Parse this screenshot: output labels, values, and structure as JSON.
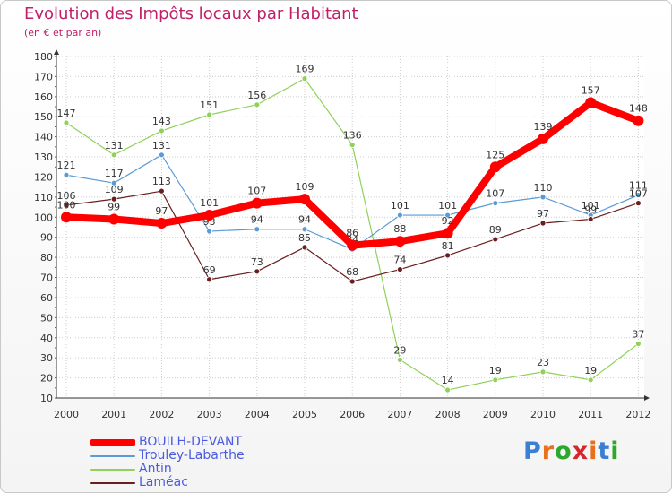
{
  "title": "Evolution des Impôts locaux par Habitant",
  "subtitle": "(en € et par an)",
  "brand": {
    "letters": [
      "P",
      "r",
      "o",
      "x",
      "i",
      "t",
      "i"
    ]
  },
  "colors": {
    "title": "#c0206a",
    "legend_text": "#4a5be0",
    "brand": [
      "#3a7fd4",
      "#e8701c",
      "#2ca82c",
      "#d4282c",
      "#e8701c",
      "#3a7fd4",
      "#2ca82c"
    ]
  },
  "chart_data": {
    "type": "line",
    "title": "Evolution des Impôts locaux par Habitant",
    "subtitle": "(en € et par an)",
    "xlabel": "",
    "ylabel": "",
    "ylim": [
      10,
      180
    ],
    "yticks": [
      "10",
      "20",
      "30",
      "40",
      "50",
      "60",
      "70",
      "80",
      "90",
      "100",
      "110",
      "120",
      "130",
      "140",
      "150",
      "160",
      "170",
      "180"
    ],
    "categories": [
      "2000",
      "2001",
      "2002",
      "2003",
      "2004",
      "2005",
      "2006",
      "2007",
      "2008",
      "2009",
      "2010",
      "2011",
      "2012"
    ],
    "grid": true,
    "legend": "bottom-left",
    "series": [
      {
        "name": "Antin",
        "color": "#8fd15a",
        "values": [
          147,
          131,
          143,
          151,
          156,
          169,
          136,
          29,
          14,
          19,
          23,
          19,
          37
        ],
        "labels": [
          "147",
          "131",
          "143",
          "151",
          "156",
          "169",
          "136",
          "29",
          "14",
          "19",
          "23",
          "19",
          "37"
        ]
      },
      {
        "name": "Trouley-Labarthe",
        "color": "#5a9bd5",
        "values": [
          121,
          117,
          131,
          93,
          94,
          94,
          84,
          101,
          101,
          107,
          110,
          101,
          111
        ],
        "labels": [
          "121",
          "117",
          "131",
          "93",
          "94",
          "94",
          "84",
          "101",
          "101",
          "107",
          "110",
          "101",
          "111"
        ]
      },
      {
        "name": "Laméac",
        "color": "#6b1e1e",
        "values": [
          106,
          109,
          113,
          69,
          73,
          85,
          68,
          74,
          81,
          89,
          97,
          99,
          107
        ],
        "labels": [
          "106",
          "109",
          "113",
          "69",
          "73",
          "85",
          "68",
          "74",
          "81",
          "89",
          "97",
          "99",
          "107"
        ]
      },
      {
        "name": "BOUILH-DEVANT",
        "color": "#ff0000",
        "values": [
          100,
          99,
          97,
          101,
          107,
          109,
          86,
          88,
          92,
          125,
          139,
          157,
          148
        ],
        "labels": [
          "100",
          "99",
          "97",
          "101",
          "107",
          "109",
          "86",
          "88",
          "92",
          "125",
          "139",
          "157",
          "148"
        ]
      }
    ],
    "legend_order": [
      "BOUILH-DEVANT",
      "Trouley-Labarthe",
      "Antin",
      "Laméac"
    ]
  }
}
